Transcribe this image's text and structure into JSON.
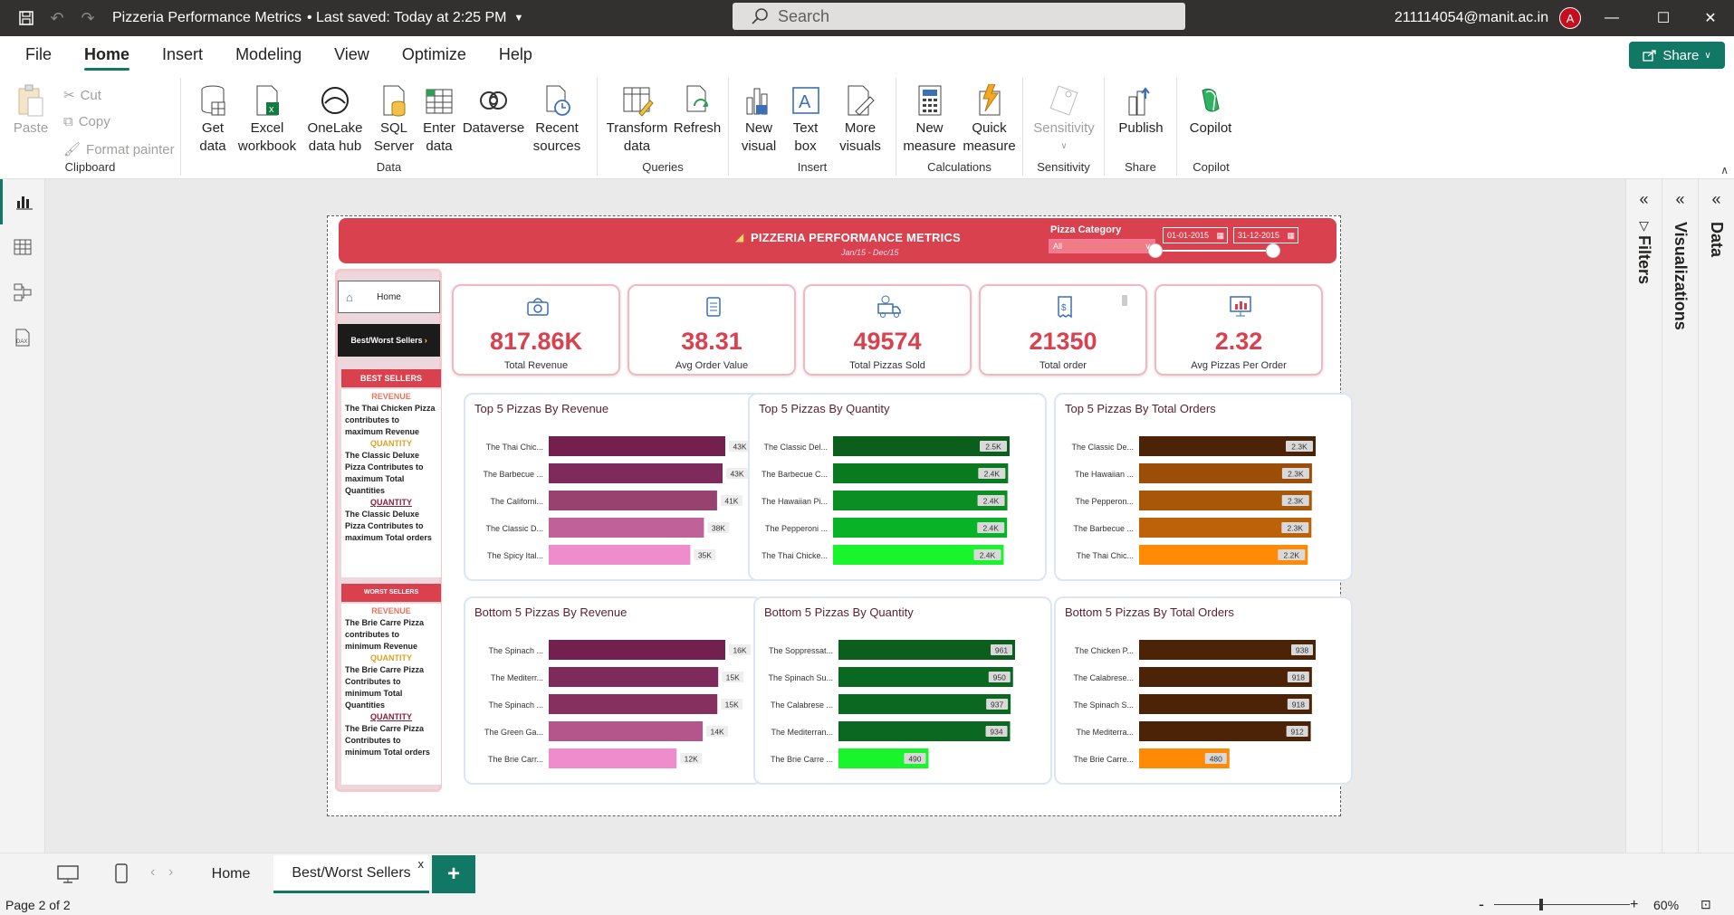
{
  "titlebar": {
    "doc_title": "Pizzeria Performance Metrics",
    "saved": "• Last saved: Today at 2:25 PM",
    "search_placeholder": "Search",
    "user_email": "211114054@manit.ac.in",
    "avatar_letter": "A"
  },
  "menu": {
    "items": [
      "File",
      "Home",
      "Insert",
      "Modeling",
      "View",
      "Optimize",
      "Help"
    ],
    "share": "Share"
  },
  "ribbon": {
    "clipboard": {
      "paste": "Paste",
      "cut": "Cut",
      "copy": "Copy",
      "format_painter": "Format painter",
      "label": "Clipboard"
    },
    "data": {
      "get_data": "Get data",
      "excel": "Excel workbook",
      "onelake": "OneLake data hub",
      "sql": "SQL Server",
      "enter_data": "Enter data",
      "dataverse": "Dataverse",
      "recent": "Recent sources",
      "label": "Data"
    },
    "queries": {
      "transform": "Transform data",
      "refresh": "Refresh",
      "label": "Queries"
    },
    "insert": {
      "new_visual": "New visual",
      "text_box": "Text box",
      "more_visuals": "More visuals",
      "label": "Insert"
    },
    "calculations": {
      "new_measure": "New measure",
      "quick_measure": "Quick measure",
      "label": "Calculations"
    },
    "sensitivity": {
      "sensitivity": "Sensitivity",
      "label": "Sensitivity"
    },
    "share": {
      "publish": "Publish",
      "label": "Share"
    },
    "copilot": {
      "copilot": "Copilot",
      "label": "Copilot"
    }
  },
  "panes": {
    "filters": "Filters",
    "visualizations": "Visualizations",
    "data": "Data"
  },
  "report": {
    "title": "PIZZERIA PERFORMANCE METRICS",
    "subtitle": "Jan/15 - Dec/15",
    "pizza_category_label": "Pizza Category",
    "pizza_category_value": "All",
    "date_from": "01-01-2015",
    "date_to": "31-12-2015",
    "nav": {
      "home": "Home",
      "best_worst": "Best/Worst Sellers",
      "best_head": "BEST SELLERS",
      "best": [
        {
          "label": "REVENUE",
          "color": "#e8735f",
          "text": "The Thai Chicken Pizza contributes to maximum Revenue"
        },
        {
          "label": "QUANTITY",
          "color": "#e0a020",
          "text": "The Classic Deluxe Pizza Contributes to maximum Total Quantities"
        },
        {
          "label": "QUANTITY",
          "color": "#8a1f3a",
          "text": "The Classic Deluxe Pizza Contributes to maximum Total orders"
        }
      ],
      "worst_head": "WORST SELLERS",
      "worst": [
        {
          "label": "REVENUE",
          "color": "#e8735f",
          "text": "The Brie Carre Pizza contributes to minimum Revenue"
        },
        {
          "label": "QUANTITY",
          "color": "#e0a020",
          "text": "The Brie Carre Pizza Contributes to minimum Total Quantities"
        },
        {
          "label": "QUANTITY",
          "color": "#8a1f3a",
          "text": "The Brie  Carre Pizza Contributes to minimum Total orders"
        }
      ]
    },
    "kpis": [
      {
        "value": "817.86K",
        "label": "Total Revenue"
      },
      {
        "value": "38.31",
        "label": "Avg Order Value"
      },
      {
        "value": "49574",
        "label": "Total Pizzas Sold"
      },
      {
        "value": "21350",
        "label": "Total order"
      },
      {
        "value": "2.32",
        "label": "Avg Pizzas Per Order"
      }
    ]
  },
  "chart_data": [
    {
      "type": "bar",
      "title": "Top 5 Pizzas By Revenue",
      "categories": [
        "The Thai Chic...",
        "The Barbecue ...",
        "The Californi...",
        "The Classic D...",
        "The Spicy Ital..."
      ],
      "values": [
        43434,
        42768,
        41410,
        38180,
        34831
      ],
      "labels": [
        "43K",
        "43K",
        "41K",
        "38K",
        "35K"
      ],
      "colors": [
        "#74204f",
        "#7e2a5a",
        "#98426f",
        "#c0619a",
        "#ee8ccc"
      ],
      "label_style": "outside"
    },
    {
      "type": "bar",
      "title": "Top 5 Pizzas By Quantity",
      "categories": [
        "The Classic Del...",
        "The Barbecue C...",
        "The Hawaiian Pi...",
        "The Pepperoni ...",
        "The Thai Chicke..."
      ],
      "values": [
        2453,
        2432,
        2422,
        2418,
        2371
      ],
      "labels": [
        "2.5K",
        "2.4K",
        "2.4K",
        "2.4K",
        "2.4K"
      ],
      "colors": [
        "#0b5e1c",
        "#0a7a1e",
        "#0c8f22",
        "#09b328",
        "#19f52c"
      ],
      "label_style": "inside"
    },
    {
      "type": "bar",
      "title": "Top 5 Pizzas By Total Orders",
      "categories": [
        "The Classic De...",
        "The Hawaiian ...",
        "The Pepperon...",
        "The Barbecue ...",
        "The Thai Chic..."
      ],
      "values": [
        2329,
        2280,
        2278,
        2273,
        2225
      ],
      "labels": [
        "2.3K",
        "2.3K",
        "2.3K",
        "2.3K",
        "2.2K"
      ],
      "colors": [
        "#4d2308",
        "#9c4d08",
        "#a85608",
        "#bd6208",
        "#ff8a05"
      ],
      "label_style": "inside"
    },
    {
      "type": "bar",
      "title": "Bottom 5 Pizzas By Revenue",
      "categories": [
        "The Spinach ...",
        "The Mediterr...",
        "The Spinach ...",
        "The Green Ga...",
        "The Brie Carr..."
      ],
      "values": [
        16000,
        15360,
        15278,
        13956,
        11588
      ],
      "labels": [
        "16K",
        "15K",
        "15K",
        "14K",
        "12K"
      ],
      "colors": [
        "#74204f",
        "#7e2a5a",
        "#85305f",
        "#b4558c",
        "#ee8ccc"
      ],
      "label_style": "outside"
    },
    {
      "type": "bar",
      "title": "Bottom 5 Pizzas By Quantity",
      "categories": [
        "The Soppressat...",
        "The Spinach Su...",
        "The Calabrese ...",
        "The Mediterran...",
        "The Brie Carre ..."
      ],
      "values": [
        961,
        950,
        937,
        934,
        490
      ],
      "labels": [
        "961",
        "950",
        "937",
        "934",
        "490"
      ],
      "colors": [
        "#0b5e1c",
        "#0b6820",
        "#0b6820",
        "#0b6820",
        "#19f52c"
      ],
      "label_style": "inside"
    },
    {
      "type": "bar",
      "title": "Bottom 5 Pizzas By Total Orders",
      "categories": [
        "The Chicken P...",
        "The Calabrese...",
        "The Spinach S...",
        "The Mediterra...",
        "The Brie Carre..."
      ],
      "values": [
        938,
        918,
        918,
        912,
        480
      ],
      "labels": [
        "938",
        "918",
        "918",
        "912",
        "480"
      ],
      "colors": [
        "#4d2308",
        "#4d2308",
        "#4d2308",
        "#4d2308",
        "#ff8a05"
      ],
      "label_style": "inside"
    }
  ],
  "tabs": {
    "home": "Home",
    "best_worst": "Best/Worst Sellers",
    "close": "x",
    "add": "+"
  },
  "status": {
    "page": "Page 2 of 2",
    "zoom": "60%",
    "minus": "-",
    "plus": "+"
  }
}
